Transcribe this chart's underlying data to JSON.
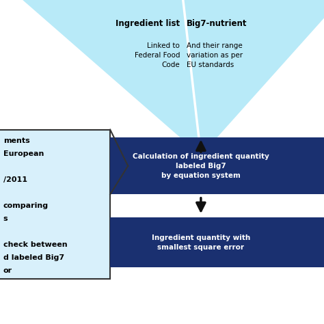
{
  "bg_color": "#ffffff",
  "light_blue_triangle": "#b8eaf8",
  "light_blue_box": "#d8f0fb",
  "dark_blue_box": "#1a3070",
  "arrow_color": "#111111",
  "col1_header": "Ingredient list",
  "col1_sub": "Linked to\nFederal Food\nCode",
  "col2_header": "Big7-nutrient",
  "col2_sub": "And their range\nvariation as per\nEU standards",
  "box1_text": "Calculation of ingredient quantity\nlabeled Big7\nby equation system",
  "box2_text": "Ingredient quantity with\nsmallest square error",
  "left_box_lines": [
    "ments",
    "European",
    "",
    "/2011",
    "",
    "comparing",
    "s",
    "",
    "check between",
    "d labeled Big7",
    "or"
  ]
}
